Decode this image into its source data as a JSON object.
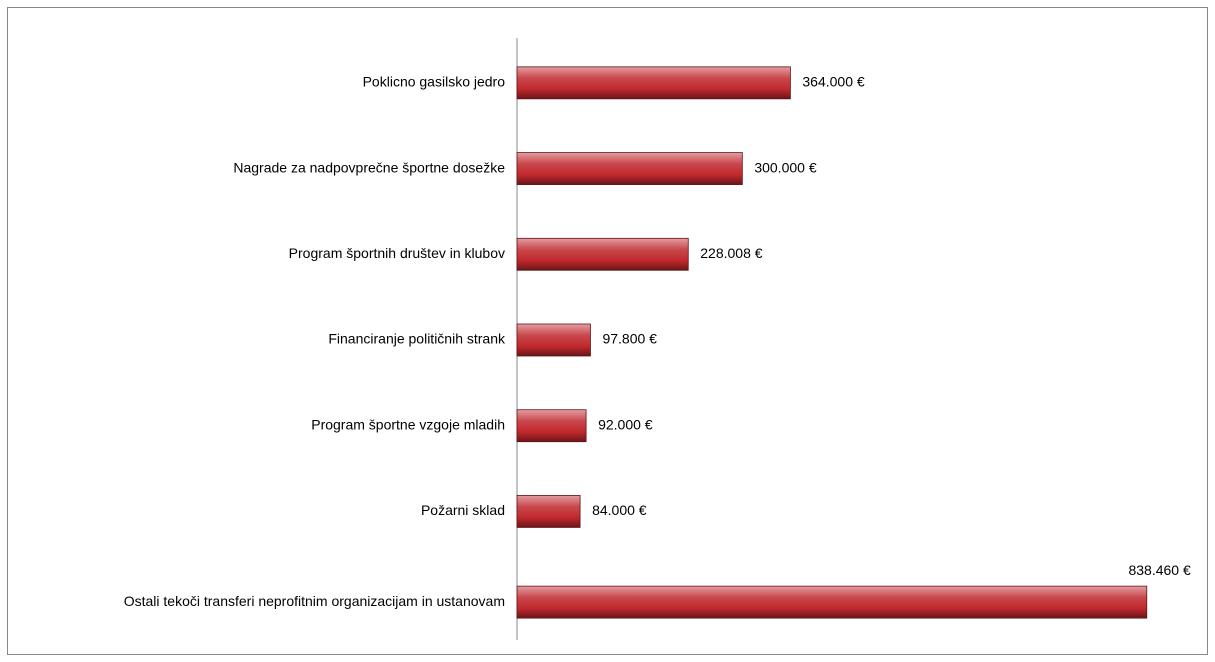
{
  "chart_data": {
    "type": "bar",
    "orientation": "horizontal",
    "categories": [
      "Poklicno gasilsko jedro",
      "Nagrade za nadpovprečne športne dosežke",
      "Program športnih društev in klubov",
      "Financiranje političnih strank",
      "Program športne vzgoje mladih",
      "Požarni sklad",
      "Ostali tekoči transferi neprofitnim organizacijam in ustanovam"
    ],
    "values": [
      364000,
      300000,
      228008,
      97800,
      92000,
      84000,
      838460
    ],
    "value_labels": [
      "364.000 €",
      "300.000 €",
      "228.008 €",
      "97.800 €",
      "92.000 €",
      "84.000 €",
      "838.460 €"
    ],
    "color": "#c0282d",
    "xlim": [
      0,
      900000
    ]
  }
}
